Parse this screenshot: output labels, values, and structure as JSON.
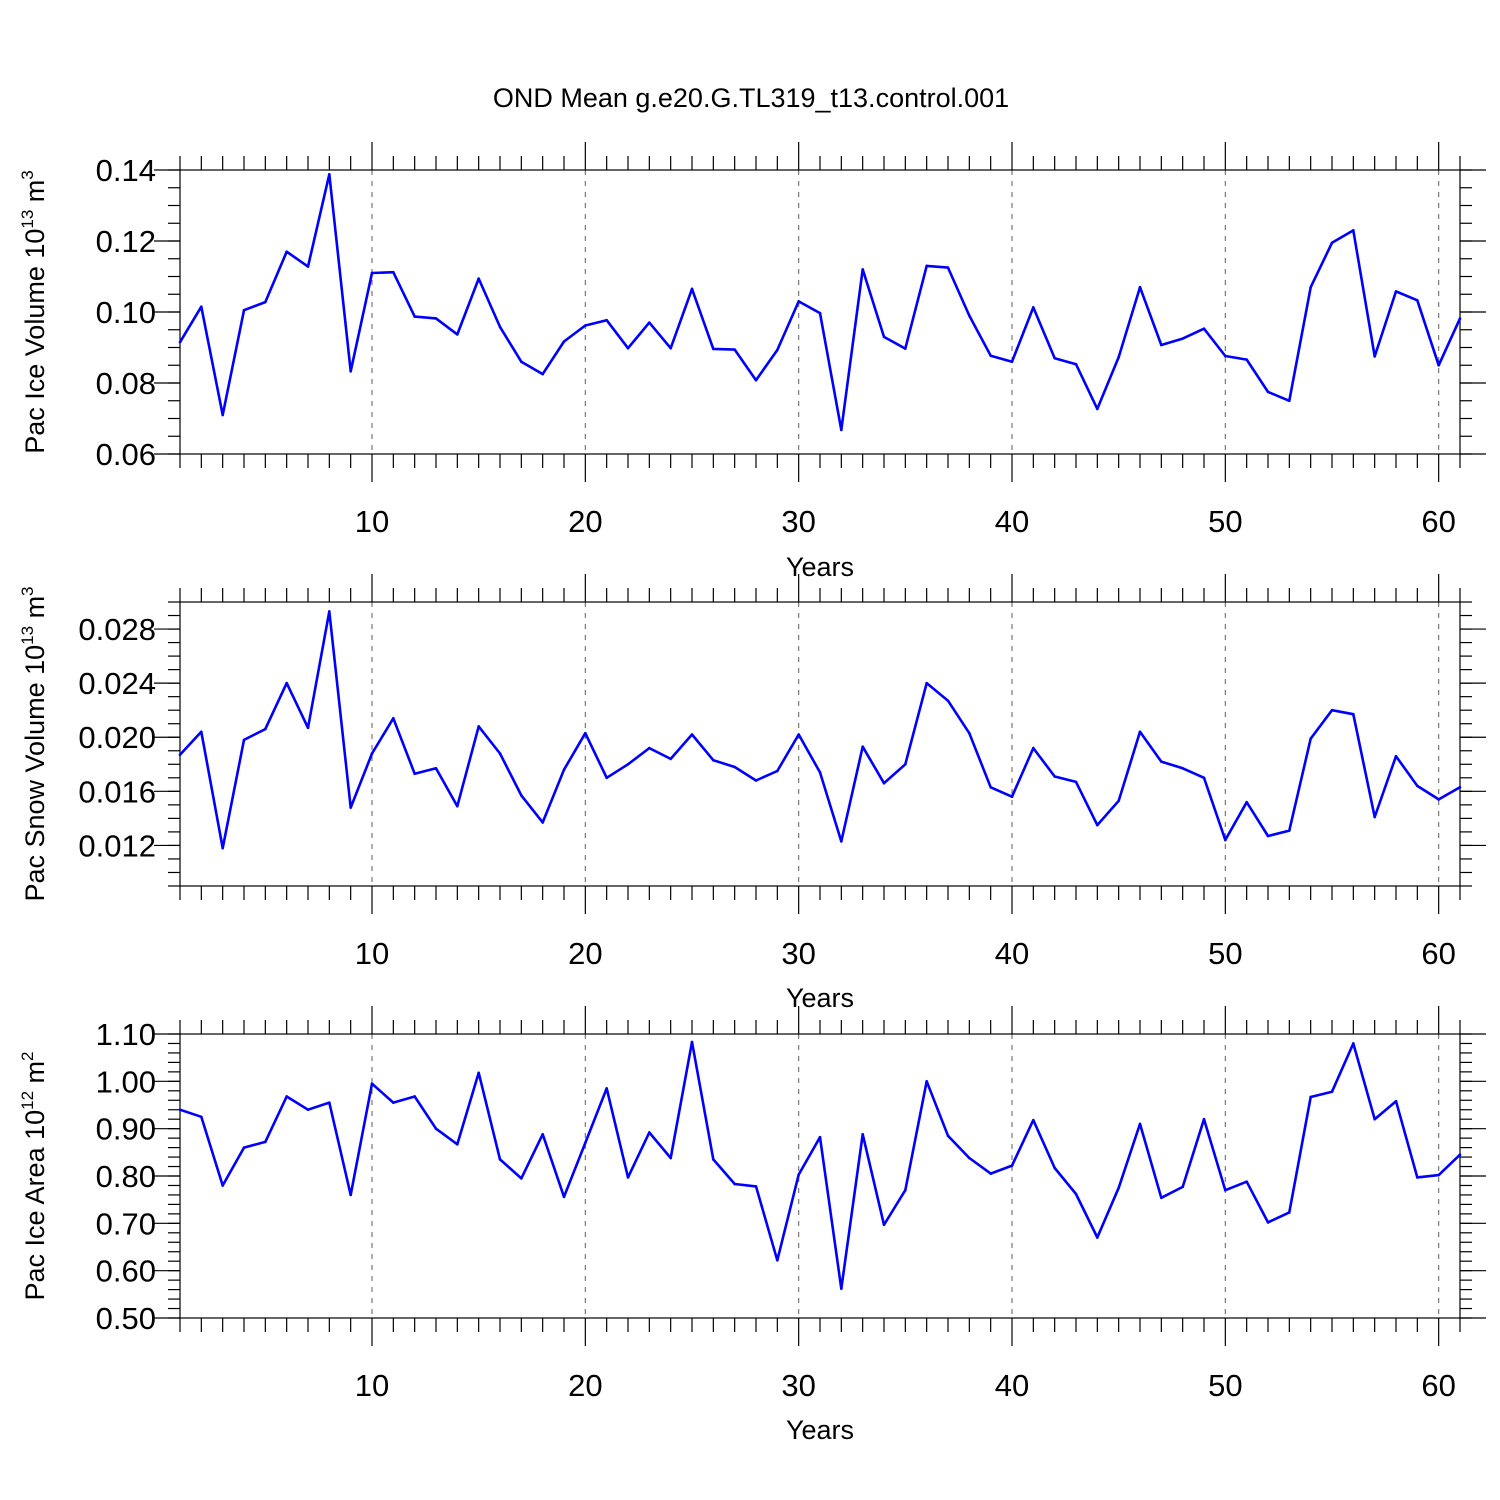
{
  "title": "OND Mean g.e20.G.TL319_t13.control.001",
  "colors": {
    "line": "#0000ff",
    "axis": "#000000",
    "grid": "#7a7a7a"
  },
  "chart_data": [
    {
      "type": "line",
      "ylabel": "Pac Ice Volume 10",
      "ylabel_exp": "13",
      "ylabel_unit": "m",
      "ylabel_unit_exp": "3",
      "xlabel": "Years",
      "xlim": [
        1,
        61
      ],
      "ylim": [
        0.06,
        0.14
      ],
      "xticks": [
        10,
        20,
        30,
        40,
        50,
        60
      ],
      "yticks": [
        0.06,
        0.08,
        0.1,
        0.12,
        0.14
      ],
      "ytick_labels": [
        "0.06",
        "0.08",
        "0.10",
        "0.12",
        "0.14"
      ],
      "ytick_minor": 0.005,
      "grid": "x dashed",
      "x": [
        1,
        2,
        3,
        4,
        5,
        6,
        7,
        8,
        9,
        10,
        11,
        12,
        13,
        14,
        15,
        16,
        17,
        18,
        19,
        20,
        21,
        22,
        23,
        24,
        25,
        26,
        27,
        28,
        29,
        30,
        31,
        32,
        33,
        34,
        35,
        36,
        37,
        38,
        39,
        40,
        41,
        42,
        43,
        44,
        45,
        46,
        47,
        48,
        49,
        50,
        51,
        52,
        53,
        54,
        55,
        56,
        57,
        58,
        59,
        60,
        61
      ],
      "values": [
        0.0915,
        0.1015,
        0.071,
        0.1005,
        0.1028,
        0.117,
        0.1128,
        0.1388,
        0.0833,
        0.111,
        0.1112,
        0.0987,
        0.0982,
        0.0937,
        0.1094,
        0.0958,
        0.086,
        0.0825,
        0.0917,
        0.0962,
        0.0977,
        0.0898,
        0.097,
        0.0898,
        0.1065,
        0.0896,
        0.0894,
        0.0808,
        0.0893,
        0.103,
        0.0997,
        0.0668,
        0.112,
        0.093,
        0.0897,
        0.113,
        0.1125,
        0.099,
        0.0877,
        0.086,
        0.1013,
        0.087,
        0.0853,
        0.0727,
        0.0873,
        0.107,
        0.0907,
        0.0925,
        0.0953,
        0.0876,
        0.0866,
        0.0775,
        0.075,
        0.107,
        0.1195,
        0.123,
        0.0875,
        0.1058,
        0.1033,
        0.085,
        0.0982
      ]
    },
    {
      "type": "line",
      "ylabel": "Pac Snow Volume 10",
      "ylabel_exp": "13",
      "ylabel_unit": "m",
      "ylabel_unit_exp": "3",
      "xlabel": "Years",
      "xlim": [
        1,
        61
      ],
      "ylim": [
        0.009,
        0.03
      ],
      "xticks": [
        10,
        20,
        30,
        40,
        50,
        60
      ],
      "yticks": [
        0.012,
        0.016,
        0.02,
        0.024,
        0.028
      ],
      "ytick_labels": [
        "0.012",
        "0.016",
        "0.020",
        "0.024",
        "0.028"
      ],
      "ytick_minor": 0.001,
      "grid": "x dashed",
      "x": [
        1,
        2,
        3,
        4,
        5,
        6,
        7,
        8,
        9,
        10,
        11,
        12,
        13,
        14,
        15,
        16,
        17,
        18,
        19,
        20,
        21,
        22,
        23,
        24,
        25,
        26,
        27,
        28,
        29,
        30,
        31,
        32,
        33,
        34,
        35,
        36,
        37,
        38,
        39,
        40,
        41,
        42,
        43,
        44,
        45,
        46,
        47,
        48,
        49,
        50,
        51,
        52,
        53,
        54,
        55,
        56,
        57,
        58,
        59,
        60,
        61
      ],
      "values": [
        0.0187,
        0.0204,
        0.0118,
        0.0198,
        0.0206,
        0.024,
        0.0207,
        0.0293,
        0.0148,
        0.0188,
        0.0214,
        0.0173,
        0.0177,
        0.0149,
        0.0208,
        0.0188,
        0.0157,
        0.0137,
        0.0176,
        0.0203,
        0.017,
        0.018,
        0.0192,
        0.0184,
        0.0202,
        0.0183,
        0.0178,
        0.0168,
        0.0175,
        0.0202,
        0.0174,
        0.0123,
        0.0193,
        0.0166,
        0.018,
        0.024,
        0.0227,
        0.0203,
        0.0163,
        0.0156,
        0.0192,
        0.0171,
        0.0167,
        0.0135,
        0.0153,
        0.0204,
        0.0182,
        0.0177,
        0.017,
        0.0124,
        0.0152,
        0.0127,
        0.0131,
        0.0199,
        0.022,
        0.0217,
        0.0141,
        0.0186,
        0.0164,
        0.0154,
        0.0163
      ]
    },
    {
      "type": "line",
      "ylabel": "Pac Ice Area 10",
      "ylabel_exp": "12",
      "ylabel_unit": "m",
      "ylabel_unit_exp": "2",
      "xlabel": "Years",
      "xlim": [
        1,
        61
      ],
      "ylim": [
        0.5,
        1.1
      ],
      "xticks": [
        10,
        20,
        30,
        40,
        50,
        60
      ],
      "yticks": [
        0.5,
        0.6,
        0.7,
        0.8,
        0.9,
        1.0,
        1.1
      ],
      "ytick_labels": [
        "0.50",
        "0.60",
        "0.70",
        "0.80",
        "0.90",
        "1.00",
        "1.10"
      ],
      "ytick_minor": 0.02,
      "grid": "x dashed",
      "x": [
        1,
        2,
        3,
        4,
        5,
        6,
        7,
        8,
        9,
        10,
        11,
        12,
        13,
        14,
        15,
        16,
        17,
        18,
        19,
        20,
        21,
        22,
        23,
        24,
        25,
        26,
        27,
        28,
        29,
        30,
        31,
        32,
        33,
        34,
        35,
        36,
        37,
        38,
        39,
        40,
        41,
        42,
        43,
        44,
        45,
        46,
        47,
        48,
        49,
        50,
        51,
        52,
        53,
        54,
        55,
        56,
        57,
        58,
        59,
        60,
        61
      ],
      "values": [
        0.94,
        0.925,
        0.78,
        0.86,
        0.872,
        0.968,
        0.94,
        0.955,
        0.76,
        0.995,
        0.955,
        0.968,
        0.9,
        0.867,
        1.018,
        0.835,
        0.795,
        0.888,
        0.756,
        0.87,
        0.985,
        0.797,
        0.892,
        0.838,
        1.083,
        0.835,
        0.783,
        0.778,
        0.622,
        0.803,
        0.882,
        0.562,
        0.888,
        0.697,
        0.77,
        1.0,
        0.885,
        0.838,
        0.805,
        0.822,
        0.918,
        0.817,
        0.762,
        0.67,
        0.775,
        0.91,
        0.754,
        0.777,
        0.92,
        0.77,
        0.788,
        0.702,
        0.723,
        0.967,
        0.978,
        1.08,
        0.92,
        0.958,
        0.797,
        0.802,
        0.845
      ]
    }
  ]
}
